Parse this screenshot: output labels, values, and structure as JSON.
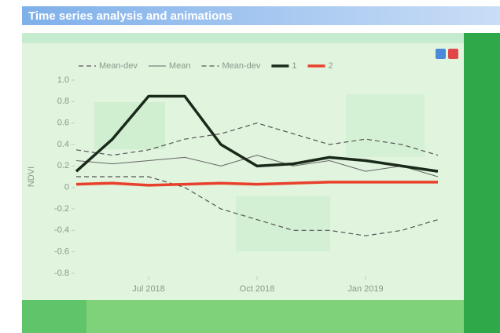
{
  "header": {
    "title": "Time series analysis and animations"
  },
  "chart_data": {
    "type": "line",
    "y_label": "NDVI",
    "x": [
      "2018-05",
      "2018-06",
      "2018-07",
      "2018-08",
      "2018-09",
      "2018-10",
      "2018-11",
      "2018-12",
      "2019-01",
      "2019-02",
      "2019-03"
    ],
    "xlim": [
      "2018-05",
      "2019-03"
    ],
    "xticks": [
      {
        "value": "2018-07",
        "label": "Jul 2018"
      },
      {
        "value": "2018-10",
        "label": "Oct 2018"
      },
      {
        "value": "2019-01",
        "label": "Jan 2019"
      }
    ],
    "ylim": [
      -0.8,
      1.0
    ],
    "yticks": [
      {
        "value": 1.0,
        "label": "1.0"
      },
      0.8,
      0.6,
      0.4,
      0.2,
      0,
      -0.2,
      -0.4,
      -0.6,
      -0.8
    ],
    "series": [
      {
        "name": "Mean-dev",
        "color": "#555555",
        "style": "dashed",
        "values": [
          0.35,
          0.3,
          0.35,
          0.45,
          0.5,
          0.6,
          0.5,
          0.4,
          0.45,
          0.4,
          0.3
        ]
      },
      {
        "name": "Mean",
        "color": "#666666",
        "style": "thin",
        "values": [
          0.25,
          0.22,
          0.25,
          0.28,
          0.2,
          0.3,
          0.2,
          0.25,
          0.15,
          0.2,
          0.1
        ]
      },
      {
        "name": "Mean-dev",
        "color": "#555555",
        "style": "dashed",
        "values": [
          0.1,
          0.1,
          0.1,
          0.0,
          -0.2,
          -0.3,
          -0.4,
          -0.4,
          -0.45,
          -0.4,
          -0.3
        ]
      },
      {
        "name": "1",
        "color": "#1a2a1a",
        "style": "bold",
        "values": [
          0.15,
          0.45,
          0.85,
          0.85,
          0.4,
          0.2,
          0.22,
          0.28,
          0.25,
          0.2,
          0.15
        ]
      },
      {
        "name": "2",
        "color": "#e8402a",
        "style": "bold",
        "values": [
          0.03,
          0.04,
          0.02,
          0.03,
          0.04,
          0.03,
          0.04,
          0.05,
          0.05,
          0.05,
          0.05
        ]
      }
    ]
  }
}
